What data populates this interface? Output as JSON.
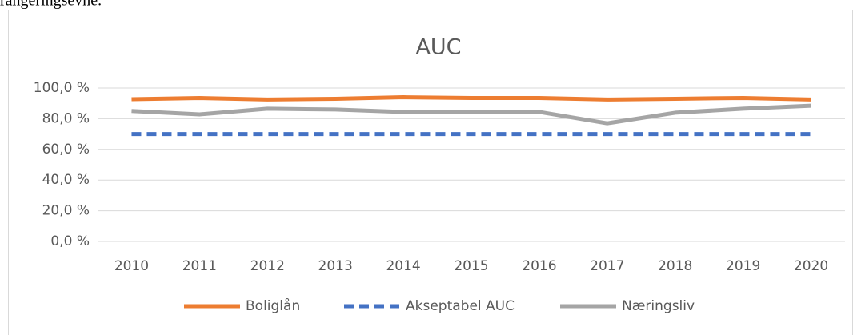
{
  "text_above": "rangeringsevne.",
  "chart_data": {
    "type": "line",
    "title": "AUC",
    "categories": [
      "2010",
      "2011",
      "2012",
      "2013",
      "2014",
      "2015",
      "2016",
      "2017",
      "2018",
      "2019",
      "2020"
    ],
    "series": [
      {
        "name": "Boliglån",
        "color": "#ed7d31",
        "style": "solid",
        "values": [
          92.7,
          93.5,
          92.5,
          93,
          94,
          93.5,
          93.5,
          92.5,
          93,
          93.5,
          92.5
        ]
      },
      {
        "name": "Akseptabel AUC",
        "color": "#4472c4",
        "style": "dashed",
        "values": [
          70,
          70,
          70,
          70,
          70,
          70,
          70,
          70,
          70,
          70,
          70
        ]
      },
      {
        "name": "Næringsliv",
        "color": "#a5a5a5",
        "style": "solid",
        "values": [
          85,
          82.8,
          86.5,
          86,
          84.4,
          84.4,
          84.4,
          77,
          83.9,
          86.5,
          88.5
        ]
      }
    ],
    "ylim": [
      0,
      100
    ],
    "yticks": [
      {
        "value": 0,
        "label": "0,0 %"
      },
      {
        "value": 20,
        "label": "20,0 %"
      },
      {
        "value": 40,
        "label": "40,0 %"
      },
      {
        "value": 60,
        "label": "60,0 %"
      },
      {
        "value": 80,
        "label": "80,0 %"
      },
      {
        "value": 100,
        "label": "100,0 %"
      }
    ],
    "grid": true,
    "legend": "bottom"
  }
}
